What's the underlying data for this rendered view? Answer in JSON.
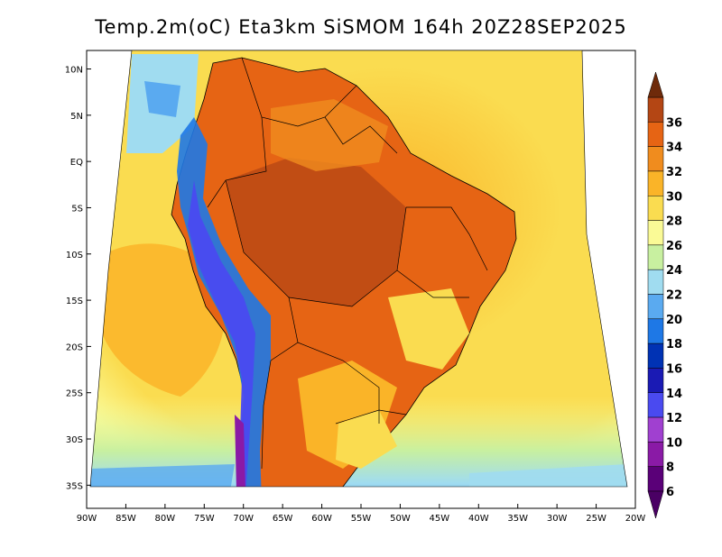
{
  "title": "Temp.2m(oC) Eta3km SiSMOM 164h 20Z28SEP2025",
  "map": {
    "lon_min": -90,
    "lon_max": -20,
    "lat_min": -37.5,
    "lat_max": 12,
    "lat_ticks": [
      {
        "lat": 10,
        "label": "10N"
      },
      {
        "lat": 5,
        "label": "5N"
      },
      {
        "lat": 0,
        "label": "EQ"
      },
      {
        "lat": -5,
        "label": "5S"
      },
      {
        "lat": -10,
        "label": "10S"
      },
      {
        "lat": -15,
        "label": "15S"
      },
      {
        "lat": -20,
        "label": "20S"
      },
      {
        "lat": -25,
        "label": "25S"
      },
      {
        "lat": -30,
        "label": "30S"
      },
      {
        "lat": -35,
        "label": "35S"
      }
    ],
    "lon_ticks": [
      {
        "lon": -90,
        "label": "90W"
      },
      {
        "lon": -85,
        "label": "85W"
      },
      {
        "lon": -80,
        "label": "80W"
      },
      {
        "lon": -75,
        "label": "75W"
      },
      {
        "lon": -70,
        "label": "70W"
      },
      {
        "lon": -65,
        "label": "65W"
      },
      {
        "lon": -60,
        "label": "60W"
      },
      {
        "lon": -55,
        "label": "55W"
      },
      {
        "lon": -50,
        "label": "50W"
      },
      {
        "lon": -45,
        "label": "45W"
      },
      {
        "lon": -40,
        "label": "40W"
      },
      {
        "lon": -35,
        "label": "35W"
      },
      {
        "lon": -30,
        "label": "30W"
      },
      {
        "lon": -25,
        "label": "25W"
      },
      {
        "lon": -20,
        "label": "20W"
      }
    ]
  },
  "colorbar": {
    "levels": [
      {
        "value": 6,
        "color": "#5a0078"
      },
      {
        "value": 8,
        "color": "#8a1aa6"
      },
      {
        "value": 10,
        "color": "#a040d0"
      },
      {
        "value": 12,
        "color": "#4a4af0"
      },
      {
        "value": 14,
        "color": "#1a1ab4"
      },
      {
        "value": 16,
        "color": "#0032b4"
      },
      {
        "value": 18,
        "color": "#1e78e6"
      },
      {
        "value": 20,
        "color": "#5aaaf0"
      },
      {
        "value": 22,
        "color": "#a0dcf0"
      },
      {
        "value": 24,
        "color": "#c8f0a0"
      },
      {
        "value": 26,
        "color": "#fafa96"
      },
      {
        "value": 28,
        "color": "#fadc50"
      },
      {
        "value": 30,
        "color": "#fab428"
      },
      {
        "value": 32,
        "color": "#f08c1e"
      },
      {
        "value": 34,
        "color": "#e66414"
      },
      {
        "value": 36,
        "color": "#b44614"
      }
    ],
    "top_color": "#6e2a0a",
    "bottom_color": "#4a0064"
  }
}
